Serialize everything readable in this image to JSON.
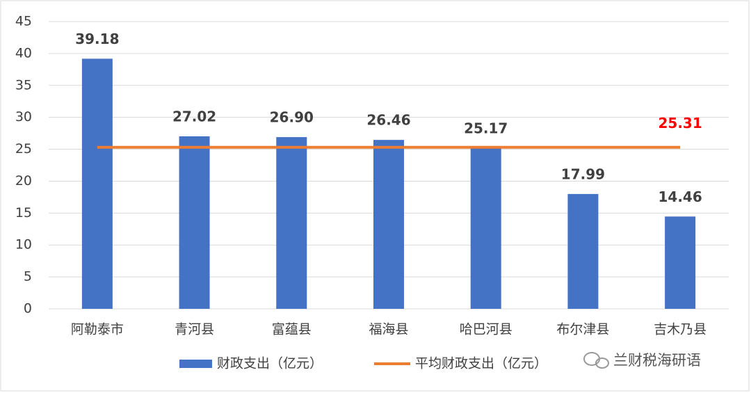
{
  "chart_data": {
    "type": "bar_line",
    "categories": [
      "阿勒泰市",
      "青河县",
      "富蕴县",
      "福海县",
      "哈巴河县",
      "布尔津县",
      "吉木乃县"
    ],
    "series": [
      {
        "name": "财政支出（亿元）",
        "type": "bar",
        "color": "#4472c4",
        "values": [
          39.18,
          27.02,
          26.9,
          26.46,
          25.17,
          17.99,
          14.46
        ],
        "value_labels": [
          "39.18",
          "27.02",
          "26.90",
          "26.46",
          "25.17",
          "17.99",
          "14.46"
        ]
      },
      {
        "name": "平均财政支出（亿元）",
        "type": "line",
        "color": "#ed7d31",
        "label_color": "#ff0000",
        "values": [
          25.31,
          25.31,
          25.31,
          25.31,
          25.31,
          25.31,
          25.31
        ],
        "value_labels": [
          null,
          null,
          null,
          null,
          null,
          null,
          "25.31"
        ]
      }
    ],
    "ylim": [
      0,
      45
    ],
    "yticks": [
      0,
      5,
      10,
      15,
      20,
      25,
      30,
      35,
      40,
      45
    ],
    "grid": true,
    "legend": "bottom",
    "watermark": "兰财税海研语"
  }
}
